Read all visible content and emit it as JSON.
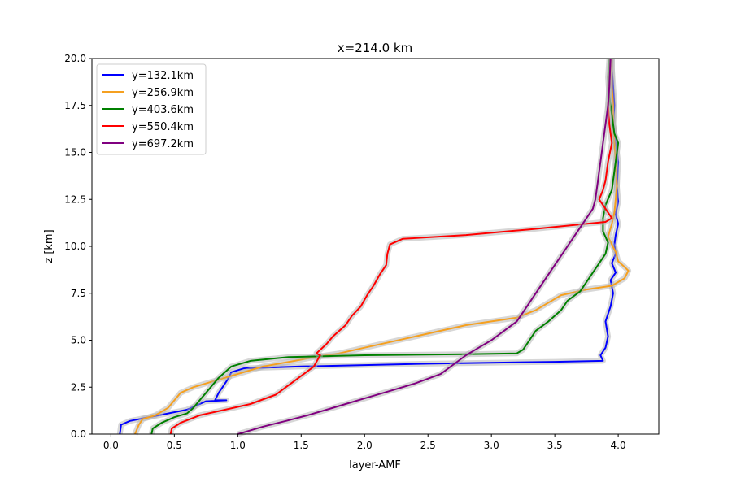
{
  "chart_data": {
    "type": "line",
    "title": "x=214.0 km",
    "xlabel": "layer-AMF",
    "ylabel": "z [km]",
    "xlim": [
      -0.15,
      4.32
    ],
    "ylim": [
      0,
      20
    ],
    "xticks": [
      "0.0",
      "0.5",
      "1.0",
      "1.5",
      "2.0",
      "2.5",
      "3.0",
      "3.5",
      "4.0"
    ],
    "yticks": [
      "0.0",
      "2.5",
      "5.0",
      "7.5",
      "10.0",
      "12.5",
      "15.0",
      "17.5",
      "20.0"
    ],
    "grid": false,
    "legend_position": "upper-left",
    "series": [
      {
        "name": "y=132.1km",
        "color": "#0000ff",
        "points": [
          [
            0.07,
            0
          ],
          [
            0.08,
            0.5
          ],
          [
            0.15,
            0.7
          ],
          [
            0.3,
            0.9
          ],
          [
            0.45,
            1.1
          ],
          [
            0.6,
            1.3
          ],
          [
            0.7,
            1.6
          ],
          [
            0.75,
            1.75
          ],
          [
            0.91,
            1.8
          ],
          [
            0.82,
            1.8
          ],
          [
            0.85,
            2.2
          ],
          [
            0.88,
            2.5
          ],
          [
            0.92,
            2.9
          ],
          [
            0.95,
            3.3
          ],
          [
            1.05,
            3.5
          ],
          [
            1.5,
            3.6
          ],
          [
            2.5,
            3.75
          ],
          [
            3.5,
            3.85
          ],
          [
            3.88,
            3.9
          ],
          [
            3.86,
            4.2
          ],
          [
            3.9,
            4.6
          ],
          [
            3.92,
            5.2
          ],
          [
            3.9,
            6.0
          ],
          [
            3.94,
            6.8
          ],
          [
            3.96,
            7.5
          ],
          [
            3.94,
            8.2
          ],
          [
            3.98,
            8.6
          ],
          [
            3.95,
            9.1
          ],
          [
            3.98,
            9.6
          ],
          [
            3.97,
            10.1
          ],
          [
            3.98,
            10.6
          ],
          [
            4.0,
            11.2
          ],
          [
            3.98,
            11.7
          ],
          [
            4.0,
            12.4
          ],
          [
            3.99,
            13.2
          ],
          [
            4.0,
            14.5
          ],
          [
            3.98,
            15.5
          ],
          [
            3.96,
            16.5
          ],
          [
            3.97,
            17.5
          ],
          [
            3.96,
            18.5
          ],
          [
            3.95,
            19.5
          ],
          [
            3.95,
            20
          ]
        ]
      },
      {
        "name": "y=256.9km",
        "color": "#f5a020",
        "points": [
          [
            0.19,
            0
          ],
          [
            0.22,
            0.5
          ],
          [
            0.25,
            0.8
          ],
          [
            0.35,
            1.0
          ],
          [
            0.45,
            1.4
          ],
          [
            0.5,
            1.8
          ],
          [
            0.55,
            2.2
          ],
          [
            0.65,
            2.5
          ],
          [
            0.8,
            2.8
          ],
          [
            1.0,
            3.2
          ],
          [
            1.2,
            3.6
          ],
          [
            1.45,
            3.9
          ],
          [
            1.6,
            4.1
          ],
          [
            1.8,
            4.3
          ],
          [
            2.0,
            4.6
          ],
          [
            2.2,
            4.9
          ],
          [
            2.4,
            5.2
          ],
          [
            2.6,
            5.5
          ],
          [
            2.8,
            5.8
          ],
          [
            3.0,
            6.0
          ],
          [
            3.2,
            6.2
          ],
          [
            3.35,
            6.6
          ],
          [
            3.45,
            7.0
          ],
          [
            3.55,
            7.4
          ],
          [
            3.75,
            7.7
          ],
          [
            3.95,
            7.9
          ],
          [
            4.05,
            8.3
          ],
          [
            4.08,
            8.7
          ],
          [
            4.05,
            8.9
          ],
          [
            4.0,
            9.2
          ],
          [
            3.98,
            9.7
          ],
          [
            3.95,
            10.1
          ],
          [
            3.92,
            10.5
          ],
          [
            3.95,
            11.2
          ],
          [
            3.97,
            11.8
          ],
          [
            3.98,
            12.5
          ],
          [
            3.99,
            13.2
          ],
          [
            3.98,
            14.5
          ],
          [
            3.97,
            15.5
          ],
          [
            3.96,
            16.5
          ],
          [
            3.96,
            17.5
          ],
          [
            3.95,
            18.5
          ],
          [
            3.95,
            19.5
          ],
          [
            3.95,
            20
          ]
        ]
      },
      {
        "name": "y=403.6km",
        "color": "#008000",
        "points": [
          [
            0.32,
            0
          ],
          [
            0.33,
            0.3
          ],
          [
            0.4,
            0.6
          ],
          [
            0.5,
            0.9
          ],
          [
            0.6,
            1.1
          ],
          [
            0.65,
            1.4
          ],
          [
            0.7,
            1.8
          ],
          [
            0.75,
            2.2
          ],
          [
            0.8,
            2.6
          ],
          [
            0.85,
            3.0
          ],
          [
            0.9,
            3.3
          ],
          [
            0.95,
            3.6
          ],
          [
            1.1,
            3.9
          ],
          [
            1.4,
            4.1
          ],
          [
            2.0,
            4.2
          ],
          [
            2.8,
            4.25
          ],
          [
            3.2,
            4.3
          ],
          [
            3.25,
            4.5
          ],
          [
            3.3,
            5.0
          ],
          [
            3.35,
            5.5
          ],
          [
            3.45,
            6.0
          ],
          [
            3.55,
            6.6
          ],
          [
            3.6,
            7.1
          ],
          [
            3.7,
            7.6
          ],
          [
            3.75,
            8.1
          ],
          [
            3.8,
            8.6
          ],
          [
            3.85,
            9.1
          ],
          [
            3.9,
            9.6
          ],
          [
            3.92,
            10.2
          ],
          [
            3.88,
            10.8
          ],
          [
            3.88,
            11.5
          ],
          [
            3.9,
            12.2
          ],
          [
            3.95,
            13.0
          ],
          [
            3.97,
            14.0
          ],
          [
            4.0,
            15.5
          ],
          [
            3.97,
            16.0
          ],
          [
            3.95,
            17.0
          ],
          [
            3.93,
            18.0
          ],
          [
            3.92,
            19.0
          ],
          [
            3.93,
            20
          ]
        ]
      },
      {
        "name": "y=550.4km",
        "color": "#ff0000",
        "points": [
          [
            0.47,
            0
          ],
          [
            0.48,
            0.3
          ],
          [
            0.55,
            0.6
          ],
          [
            0.7,
            1.0
          ],
          [
            0.9,
            1.3
          ],
          [
            1.1,
            1.6
          ],
          [
            1.3,
            2.1
          ],
          [
            1.4,
            2.6
          ],
          [
            1.5,
            3.1
          ],
          [
            1.6,
            3.6
          ],
          [
            1.65,
            4.2
          ],
          [
            1.62,
            4.3
          ],
          [
            1.7,
            4.8
          ],
          [
            1.75,
            5.2
          ],
          [
            1.85,
            5.8
          ],
          [
            1.9,
            6.3
          ],
          [
            1.97,
            6.8
          ],
          [
            2.02,
            7.4
          ],
          [
            2.07,
            7.9
          ],
          [
            2.12,
            8.5
          ],
          [
            2.17,
            9.0
          ],
          [
            2.18,
            9.6
          ],
          [
            2.2,
            10.1
          ],
          [
            2.3,
            10.4
          ],
          [
            2.8,
            10.6
          ],
          [
            3.3,
            10.9
          ],
          [
            3.9,
            11.3
          ],
          [
            3.95,
            11.5
          ],
          [
            3.9,
            12.0
          ],
          [
            3.85,
            12.5
          ],
          [
            3.88,
            13.0
          ],
          [
            3.9,
            13.5
          ],
          [
            3.92,
            14.5
          ],
          [
            3.95,
            15.5
          ],
          [
            3.93,
            16.5
          ],
          [
            3.92,
            17.5
          ],
          [
            3.93,
            18.5
          ],
          [
            3.94,
            20
          ]
        ]
      },
      {
        "name": "y=697.2km",
        "color": "#800080",
        "points": [
          [
            1.0,
            0
          ],
          [
            1.1,
            0.2
          ],
          [
            1.2,
            0.4
          ],
          [
            1.38,
            0.7
          ],
          [
            1.55,
            1.0
          ],
          [
            1.7,
            1.3
          ],
          [
            1.85,
            1.6
          ],
          [
            2.0,
            1.9
          ],
          [
            2.2,
            2.3
          ],
          [
            2.4,
            2.7
          ],
          [
            2.6,
            3.2
          ],
          [
            2.7,
            3.7
          ],
          [
            2.8,
            4.2
          ],
          [
            2.9,
            4.6
          ],
          [
            3.0,
            5.0
          ],
          [
            3.1,
            5.5
          ],
          [
            3.2,
            6.0
          ],
          [
            3.25,
            6.5
          ],
          [
            3.3,
            7.0
          ],
          [
            3.35,
            7.5
          ],
          [
            3.4,
            8.0
          ],
          [
            3.45,
            8.5
          ],
          [
            3.5,
            9.0
          ],
          [
            3.55,
            9.5
          ],
          [
            3.6,
            10.0
          ],
          [
            3.65,
            10.5
          ],
          [
            3.7,
            11.0
          ],
          [
            3.75,
            11.5
          ],
          [
            3.8,
            12.0
          ],
          [
            3.82,
            12.5
          ],
          [
            3.83,
            13.0
          ],
          [
            3.84,
            13.5
          ],
          [
            3.85,
            14.0
          ],
          [
            3.86,
            14.5
          ],
          [
            3.88,
            15.5
          ],
          [
            3.9,
            16.5
          ],
          [
            3.92,
            17.5
          ],
          [
            3.93,
            18.5
          ],
          [
            3.94,
            20
          ]
        ]
      }
    ]
  }
}
